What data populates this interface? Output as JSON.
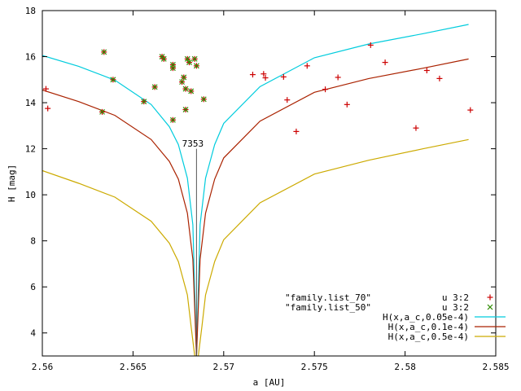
{
  "chart_data": {
    "type": "scatter",
    "xlabel": "a [AU]",
    "ylabel": "H [mag]",
    "xlim": [
      2.56,
      2.585
    ],
    "ylim": [
      3,
      18
    ],
    "x_ticks": [
      "2.56",
      "2.565",
      "2.57",
      "2.575",
      "2.58",
      "2.585"
    ],
    "y_ticks": [
      "4",
      "6",
      "8",
      "10",
      "12",
      "14",
      "16",
      "18"
    ],
    "grid": false,
    "legend_position": "bottom-right",
    "annotation": {
      "text": "7353",
      "x": 2.5683,
      "y": 12.1
    },
    "file_labels": [
      "\"family.list_70\"",
      "\"family.list_50\""
    ],
    "center_a": 2.5685,
    "series": [
      {
        "name": "u 3:2",
        "marker": "plus",
        "color": "#cc0000",
        "points": [
          [
            2.5602,
            14.6
          ],
          [
            2.5603,
            13.75
          ],
          [
            2.5634,
            16.2
          ],
          [
            2.5633,
            13.6
          ],
          [
            2.5639,
            15.0
          ],
          [
            2.5656,
            14.05
          ],
          [
            2.5662,
            14.68
          ],
          [
            2.5666,
            16.0
          ],
          [
            2.5667,
            15.9
          ],
          [
            2.5672,
            15.65
          ],
          [
            2.5672,
            15.5
          ],
          [
            2.5672,
            13.25
          ],
          [
            2.5677,
            14.9
          ],
          [
            2.5678,
            15.1
          ],
          [
            2.5679,
            14.6
          ],
          [
            2.568,
            15.9
          ],
          [
            2.5681,
            15.75
          ],
          [
            2.5679,
            13.7
          ],
          [
            2.5682,
            14.5
          ],
          [
            2.5684,
            15.9
          ],
          [
            2.5685,
            15.6
          ],
          [
            2.5689,
            14.15
          ],
          [
            2.5716,
            15.22
          ],
          [
            2.5722,
            15.25
          ],
          [
            2.5723,
            15.08
          ],
          [
            2.5733,
            15.12
          ],
          [
            2.5735,
            14.12
          ],
          [
            2.574,
            12.75
          ],
          [
            2.5746,
            15.6
          ],
          [
            2.5756,
            14.58
          ],
          [
            2.5763,
            15.1
          ],
          [
            2.5768,
            13.92
          ],
          [
            2.5781,
            16.5
          ],
          [
            2.5789,
            15.75
          ],
          [
            2.5806,
            12.9
          ],
          [
            2.5812,
            15.4
          ],
          [
            2.5819,
            15.05
          ],
          [
            2.5836,
            13.68
          ]
        ]
      },
      {
        "name": "u 3:2",
        "marker": "cross",
        "color": "#2e8b00",
        "points": [
          [
            2.5634,
            16.2
          ],
          [
            2.5633,
            13.6
          ],
          [
            2.5639,
            15.0
          ],
          [
            2.5656,
            14.05
          ],
          [
            2.5662,
            14.68
          ],
          [
            2.5666,
            16.0
          ],
          [
            2.5667,
            15.9
          ],
          [
            2.5672,
            15.65
          ],
          [
            2.5672,
            15.5
          ],
          [
            2.5672,
            13.25
          ],
          [
            2.5677,
            14.9
          ],
          [
            2.5678,
            15.1
          ],
          [
            2.5679,
            14.6
          ],
          [
            2.568,
            15.9
          ],
          [
            2.5681,
            15.75
          ],
          [
            2.5679,
            13.7
          ],
          [
            2.5682,
            14.5
          ],
          [
            2.5684,
            15.9
          ],
          [
            2.5685,
            15.6
          ],
          [
            2.5689,
            14.15
          ]
        ]
      },
      {
        "name": "H(x,a_c,0.05e-4)",
        "type": "line",
        "color": "#00ccdd",
        "x": [
          2.56,
          2.562,
          2.564,
          2.566,
          2.567,
          2.5675,
          2.568,
          2.5683,
          2.5685,
          2.5687,
          2.569,
          2.5695,
          2.57,
          2.572,
          2.575,
          2.578,
          2.581,
          2.5835
        ],
        "y": [
          16.05,
          15.58,
          14.98,
          13.92,
          12.96,
          12.18,
          10.72,
          8.7,
          3.0,
          8.7,
          10.72,
          12.18,
          13.1,
          14.7,
          15.95,
          16.55,
          17.0,
          17.4
        ]
      },
      {
        "name": "H(x,a_c,0.1e-4)",
        "type": "line",
        "color": "#aa2200",
        "x": [
          2.56,
          2.562,
          2.564,
          2.566,
          2.567,
          2.5675,
          2.568,
          2.5683,
          2.5685,
          2.5687,
          2.569,
          2.5695,
          2.57,
          2.572,
          2.575,
          2.578,
          2.581,
          2.5835
        ],
        "y": [
          14.55,
          14.05,
          13.45,
          12.4,
          11.45,
          10.68,
          9.2,
          7.2,
          3.0,
          7.2,
          9.2,
          10.68,
          11.6,
          13.2,
          14.45,
          15.05,
          15.5,
          15.9
        ]
      },
      {
        "name": "H(x,a_c,0.5e-4)",
        "type": "line",
        "color": "#ccaa00",
        "x": [
          2.56,
          2.562,
          2.564,
          2.566,
          2.567,
          2.5675,
          2.568,
          2.5682,
          2.5684,
          2.5686,
          2.5688,
          2.569,
          2.5695,
          2.57,
          2.572,
          2.575,
          2.578,
          2.581,
          2.5835
        ],
        "y": [
          11.05,
          10.5,
          9.9,
          8.85,
          7.9,
          7.1,
          5.65,
          4.3,
          3.0,
          3.0,
          4.3,
          5.65,
          7.1,
          8.05,
          9.65,
          10.9,
          11.5,
          12.0,
          12.4
        ]
      }
    ]
  }
}
